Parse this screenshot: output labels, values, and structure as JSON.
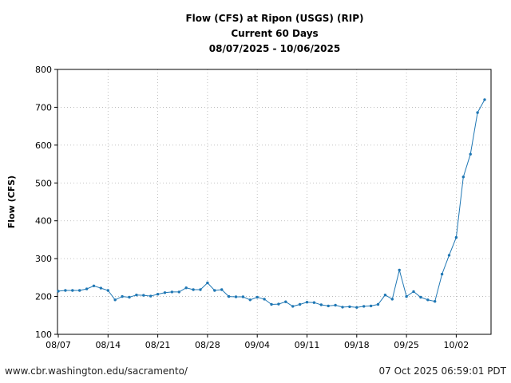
{
  "chart_data": {
    "type": "line",
    "title": "Flow (CFS) at Ripon (USGS) (RIP)",
    "subtitle": "Current 60 Days",
    "date_range": "08/07/2025 - 10/06/2025",
    "xlabel": "",
    "ylabel": "Flow (CFS)",
    "ylim": [
      100,
      800
    ],
    "yticks": [
      100,
      200,
      300,
      400,
      500,
      600,
      700,
      800
    ],
    "xticks": [
      "08/07",
      "08/14",
      "08/21",
      "08/28",
      "09/04",
      "09/11",
      "09/18",
      "09/25",
      "10/02"
    ],
    "x_start": "08/07",
    "grid": true,
    "series": [
      {
        "color": "#1f77b4",
        "x": [
          "08/07",
          "08/08",
          "08/09",
          "08/10",
          "08/11",
          "08/12",
          "08/13",
          "08/14",
          "08/15",
          "08/16",
          "08/17",
          "08/18",
          "08/19",
          "08/20",
          "08/21",
          "08/22",
          "08/23",
          "08/24",
          "08/25",
          "08/26",
          "08/27",
          "08/28",
          "08/29",
          "08/30",
          "08/31",
          "09/01",
          "09/02",
          "09/03",
          "09/04",
          "09/05",
          "09/06",
          "09/07",
          "09/08",
          "09/09",
          "09/10",
          "09/11",
          "09/12",
          "09/13",
          "09/14",
          "09/15",
          "09/16",
          "09/17",
          "09/18",
          "09/19",
          "09/20",
          "09/21",
          "09/22",
          "09/23",
          "09/24",
          "09/25",
          "09/26",
          "09/27",
          "09/28",
          "09/29",
          "09/30",
          "10/01",
          "10/02",
          "10/03",
          "10/04",
          "10/05",
          "10/06"
        ],
        "values": [
          214,
          216,
          216,
          216,
          220,
          228,
          222,
          216,
          191,
          200,
          198,
          204,
          203,
          201,
          206,
          210,
          212,
          212,
          223,
          218,
          218,
          236,
          216,
          218,
          200,
          199,
          199,
          191,
          198,
          193,
          179,
          180,
          186,
          174,
          179,
          185,
          184,
          178,
          175,
          177,
          172,
          173,
          171,
          174,
          175,
          179,
          204,
          193,
          270,
          200,
          213,
          198,
          191,
          187,
          259,
          309,
          356,
          516,
          576,
          686,
          720
        ]
      }
    ]
  },
  "footer": {
    "source_url": "www.cbr.washington.edu/sacramento/",
    "timestamp": "07 Oct 2025 06:59:01 PDT"
  }
}
